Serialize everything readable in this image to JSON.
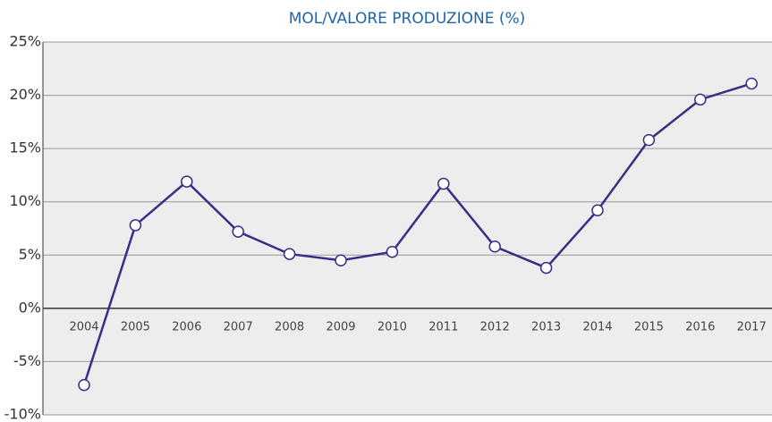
{
  "chart_data": {
    "type": "line",
    "title": "MOL/VALORE PRODUZIONE (%)",
    "categories": [
      "2004",
      "2005",
      "2006",
      "2007",
      "2008",
      "2009",
      "2010",
      "2011",
      "2012",
      "2013",
      "2014",
      "2015",
      "2016",
      "2017"
    ],
    "series": [
      {
        "name": "MOL/VALORE PRODUZIONE",
        "color": "#3a2d86",
        "values": [
          -7.2,
          7.8,
          11.9,
          7.2,
          5.1,
          4.5,
          5.3,
          11.7,
          5.8,
          3.8,
          9.2,
          15.8,
          19.6,
          21.1
        ]
      }
    ],
    "ylim": [
      -10,
      25
    ],
    "yticks": [
      {
        "value": -10,
        "label": "-10%"
      },
      {
        "value": -5,
        "label": "-5%"
      },
      {
        "value": 0,
        "label": "0%"
      },
      {
        "value": 5,
        "label": "5%"
      },
      {
        "value": 10,
        "label": "10%"
      },
      {
        "value": 15,
        "label": "15%"
      },
      {
        "value": 20,
        "label": "20%"
      },
      {
        "value": 25,
        "label": "25%"
      }
    ],
    "grid": true
  }
}
